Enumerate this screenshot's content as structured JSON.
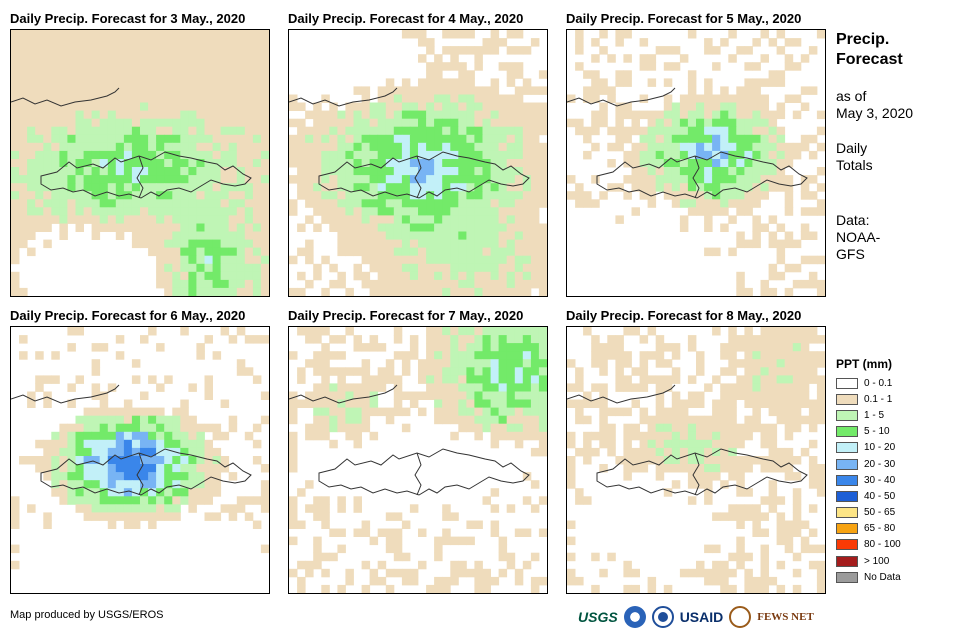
{
  "panels": [
    {
      "title": "Daily Precip. Forecast for 3 May., 2020"
    },
    {
      "title": "Daily Precip. Forecast for 4 May., 2020"
    },
    {
      "title": "Daily Precip. Forecast for 5 May., 2020"
    },
    {
      "title": "Daily Precip. Forecast for 6 May., 2020"
    },
    {
      "title": "Daily Precip. Forecast for 7 May., 2020"
    },
    {
      "title": "Daily Precip. Forecast for 8 May., 2020"
    }
  ],
  "side": {
    "title_line1": "Precip.",
    "title_line2": "Forecast",
    "asof_line1": "as of",
    "asof_line2": "May 3, 2020",
    "totals_line1": "Daily",
    "totals_line2": "Totals",
    "data_line1": "Data:",
    "data_line2": "NOAA-",
    "data_line3": "GFS"
  },
  "legend": {
    "title": "PPT (mm)",
    "items": [
      {
        "label": "0 - 0.1",
        "color": "#ffffff"
      },
      {
        "label": "0.1 - 1",
        "color": "#efdcbc"
      },
      {
        "label": "1 - 5",
        "color": "#bff5b5"
      },
      {
        "label": "5 - 10",
        "color": "#73ea69"
      },
      {
        "label": "10 - 20",
        "color": "#c2f0f8"
      },
      {
        "label": "20 - 30",
        "color": "#78b4f4"
      },
      {
        "label": "30 - 40",
        "color": "#3a86ea"
      },
      {
        "label": "40 - 50",
        "color": "#1d5fd6"
      },
      {
        "label": "50 - 65",
        "color": "#fde586"
      },
      {
        "label": "65 - 80",
        "color": "#f7a312"
      },
      {
        "label": "80 - 100",
        "color": "#fa3a05"
      },
      {
        "label": "> 100",
        "color": "#a41c1c"
      },
      {
        "label": "No Data",
        "color": "#9b9b9b"
      }
    ]
  },
  "footer": {
    "credit": "Map produced by USGS/EROS",
    "logo_usgs": "USGS",
    "logo_usaid": "USAID",
    "logo_fews": "FEWS NET"
  }
}
